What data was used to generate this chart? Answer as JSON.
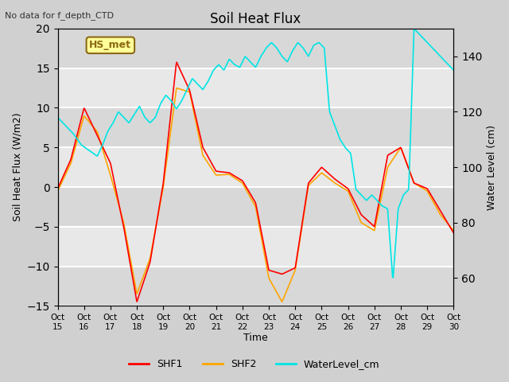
{
  "title": "Soil Heat Flux",
  "title_note": "No data for f_depth_CTD",
  "ylabel_left": "Soil Heat Flux (W/m2)",
  "ylabel_right": "Water Level (cm)",
  "xlabel": "Time",
  "annotation_box": "HS_met",
  "ylim_left": [
    -15,
    20
  ],
  "ylim_right": [
    50,
    150
  ],
  "xtick_labels": [
    "Oct 15",
    "Oct 16",
    "Oct 17",
    "Oct 18",
    "Oct 19",
    "Oct 20",
    "Oct 21",
    "Oct 22",
    "Oct 23",
    "Oct 24",
    "Oct 25",
    "Oct 26",
    "Oct 27",
    "Oct 28",
    "Oct 29",
    "Oct 30"
  ],
  "shf1_color": "#ff0000",
  "shf2_color": "#ffa500",
  "water_color": "#00e5e5",
  "background_color": "#e0e0e0",
  "plot_bg_color": "#f0f0f0",
  "grid_color": "#ffffff",
  "shf1_x": [
    0.0,
    0.5,
    1.0,
    1.5,
    2.0,
    2.5,
    3.0,
    3.5,
    4.0,
    4.5,
    5.0,
    5.5,
    6.0,
    6.5,
    7.0,
    7.5,
    8.0,
    8.5,
    9.0,
    9.5,
    10.0,
    10.5,
    11.0,
    11.5,
    12.0,
    12.5,
    13.0,
    13.5,
    14.0,
    14.5,
    15.0
  ],
  "shf1_y": [
    -0.2,
    3.5,
    10.0,
    6.5,
    3.0,
    -5.0,
    -14.5,
    -9.5,
    0.5,
    15.8,
    12.2,
    5.0,
    2.0,
    1.8,
    0.8,
    -2.0,
    -10.5,
    -11.0,
    -10.2,
    0.5,
    2.5,
    1.0,
    -0.2,
    -3.5,
    -5.0,
    4.0,
    5.0,
    0.5,
    -0.2,
    -3.0,
    -5.8
  ],
  "shf2_x": [
    0.0,
    0.5,
    1.0,
    1.5,
    2.0,
    2.5,
    3.0,
    3.5,
    4.0,
    4.5,
    5.0,
    5.5,
    6.0,
    6.5,
    7.0,
    7.5,
    8.0,
    8.5,
    9.0,
    9.5,
    10.0,
    10.5,
    11.0,
    11.5,
    12.0,
    12.5,
    13.0,
    13.5,
    14.0,
    14.5,
    15.0
  ],
  "shf2_y": [
    -0.5,
    3.0,
    9.0,
    7.0,
    1.5,
    -4.5,
    -13.5,
    -9.0,
    0.0,
    12.5,
    12.0,
    4.0,
    1.5,
    1.6,
    0.5,
    -2.5,
    -11.5,
    -14.5,
    -10.5,
    0.2,
    1.8,
    0.5,
    -0.5,
    -4.5,
    -5.5,
    2.5,
    5.0,
    0.5,
    -0.5,
    -3.5,
    -5.5
  ],
  "water_x": [
    0.0,
    0.3,
    0.6,
    0.9,
    1.2,
    1.5,
    1.7,
    1.9,
    2.1,
    2.3,
    2.5,
    2.7,
    2.9,
    3.1,
    3.3,
    3.5,
    3.7,
    3.9,
    4.1,
    4.3,
    4.5,
    4.7,
    4.9,
    5.1,
    5.3,
    5.5,
    5.7,
    5.9,
    6.1,
    6.3,
    6.5,
    6.7,
    6.9,
    7.1,
    7.3,
    7.5,
    7.7,
    7.9,
    8.1,
    8.3,
    8.5,
    8.7,
    8.9,
    9.1,
    9.3,
    9.5,
    9.7,
    9.9,
    10.1,
    10.3,
    10.5,
    10.7,
    10.9,
    11.1,
    11.3,
    11.5,
    11.7,
    11.9,
    12.1,
    12.3,
    12.5,
    12.7,
    12.9,
    13.1,
    13.3,
    13.5,
    13.7,
    13.9,
    14.1,
    14.3,
    14.5,
    14.7,
    14.9,
    15.0
  ],
  "water_y": [
    118,
    115,
    112,
    108,
    106,
    104,
    108,
    113,
    116,
    120,
    118,
    116,
    119,
    122,
    118,
    116,
    118,
    123,
    126,
    124,
    121,
    124,
    128,
    132,
    130,
    128,
    131,
    135,
    137,
    135,
    139,
    137,
    136,
    140,
    138,
    136,
    140,
    143,
    145,
    143,
    140,
    138,
    142,
    145,
    143,
    140,
    144,
    145,
    143,
    120,
    115,
    110,
    107,
    105,
    92,
    90,
    88,
    90,
    88,
    86,
    85,
    59,
    85,
    90,
    92,
    150,
    148,
    146,
    144,
    142,
    140,
    138,
    136,
    135
  ]
}
